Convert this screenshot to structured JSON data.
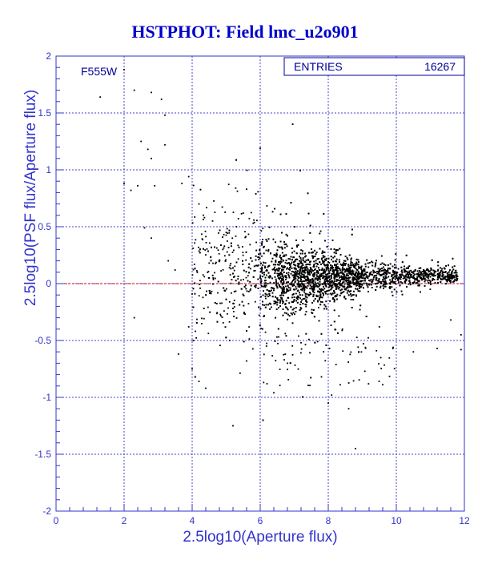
{
  "chart_data": {
    "type": "scatter",
    "title": "HSTPHOT: Field lmc_u2o901",
    "xlabel": "2.5log10(Aperture flux)",
    "ylabel": "2.5log10(PSF flux/Aperture flux)",
    "xlim": [
      0,
      12
    ],
    "ylim": [
      -2,
      2
    ],
    "x_ticks": [
      "0",
      "2",
      "4",
      "6",
      "8",
      "10",
      "12"
    ],
    "y_ticks": [
      "-2",
      "-1.5",
      "-1",
      "-0.5",
      "0",
      "0.5",
      "1",
      "1.5",
      "2"
    ],
    "grid": true,
    "annotation": "F555W",
    "stats": {
      "label": "ENTRIES",
      "value": "16267"
    },
    "reference_line": {
      "y": 0,
      "color": "#cc0000"
    },
    "colors": {
      "axes": "#3333cc",
      "grid": "#4444cc",
      "points": "#000000",
      "title": "#0000cc"
    },
    "points": [
      [
        1.3,
        1.64
      ],
      [
        2.0,
        1.88
      ],
      [
        2.3,
        1.7
      ],
      [
        2.8,
        1.68
      ],
      [
        3.1,
        1.62
      ],
      [
        3.2,
        1.48
      ],
      [
        2.5,
        1.25
      ],
      [
        2.7,
        1.18
      ],
      [
        3.2,
        1.22
      ],
      [
        2.8,
        1.1
      ],
      [
        6.0,
        1.19
      ],
      [
        2.0,
        0.88
      ],
      [
        2.2,
        0.82
      ],
      [
        2.4,
        0.86
      ],
      [
        2.9,
        0.86
      ],
      [
        3.7,
        0.88
      ],
      [
        3.9,
        0.94
      ],
      [
        2.6,
        0.49
      ],
      [
        2.8,
        0.4
      ],
      [
        3.3,
        0.2
      ],
      [
        3.5,
        0.12
      ],
      [
        5.6,
        0.83
      ],
      [
        5.5,
        0.62
      ],
      [
        2.3,
        -0.3
      ],
      [
        3.6,
        -0.62
      ],
      [
        3.9,
        -0.38
      ],
      [
        4.0,
        -0.75
      ],
      [
        4.2,
        -0.86
      ],
      [
        4.4,
        -0.92
      ],
      [
        5.2,
        -1.25
      ],
      [
        6.2,
        -0.88
      ],
      [
        6.4,
        -0.96
      ],
      [
        8.1,
        -0.98
      ],
      [
        8.0,
        -1.05
      ],
      [
        8.6,
        -1.1
      ],
      [
        8.8,
        -1.45
      ],
      [
        7.8,
        -0.82
      ],
      [
        9.5,
        -0.38
      ],
      [
        10.5,
        -0.6
      ],
      [
        11.2,
        -0.57
      ],
      [
        11.9,
        -0.58
      ],
      [
        11.9,
        -0.45
      ],
      [
        11.6,
        -0.32
      ],
      [
        5.1,
        -0.5
      ],
      [
        5.6,
        -0.68
      ],
      [
        6.8,
        -0.7
      ],
      [
        7.2,
        -0.52
      ],
      [
        4.6,
        0.55
      ],
      [
        4.9,
        0.3
      ],
      [
        5.0,
        0.45
      ],
      [
        5.3,
        0.5
      ],
      [
        4.2,
        0.7
      ],
      [
        4.5,
        0.18
      ]
    ]
  }
}
